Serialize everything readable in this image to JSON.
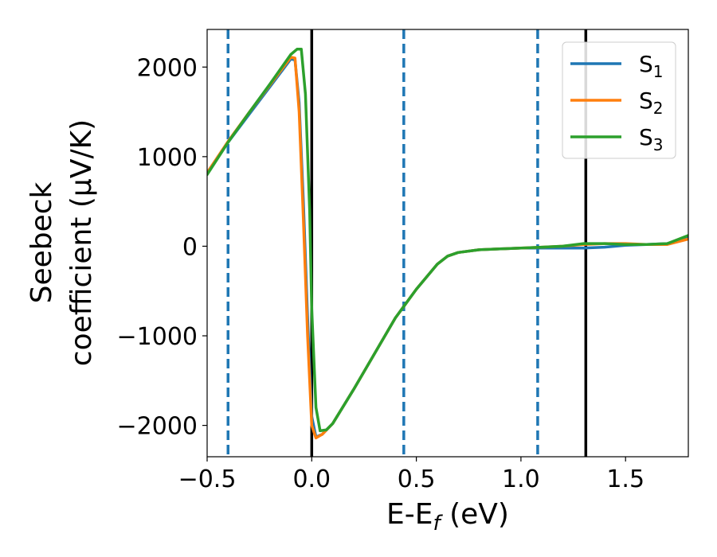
{
  "chart_data": {
    "type": "line",
    "title": "",
    "xlabel": {
      "main": "E-E",
      "sub": "f",
      "suffix": " (eV)"
    },
    "ylabel": {
      "line1": "Seebeck",
      "line2": "coefficient  (μV/K)"
    },
    "xlim": [
      -0.5,
      1.8
    ],
    "ylim": [
      -2350,
      2420
    ],
    "xticks": [
      -0.5,
      0.0,
      0.5,
      1.0,
      1.5
    ],
    "xtick_labels": [
      "−0.5",
      "0.0",
      "0.5",
      "1.0",
      "1.5"
    ],
    "yticks": [
      -2000,
      -1000,
      0,
      1000,
      2000
    ],
    "ytick_labels": [
      "−2000",
      "−1000",
      "0",
      "1000",
      "2000"
    ],
    "grid": false,
    "legend_position": "top-right",
    "vlines": [
      {
        "x": -0.4,
        "style": "dashed",
        "color": "#1f77b4"
      },
      {
        "x": 0.0,
        "style": "solid",
        "color": "#000000"
      },
      {
        "x": 0.44,
        "style": "dashed",
        "color": "#1f77b4"
      },
      {
        "x": 1.08,
        "style": "dashed",
        "color": "#1f77b4"
      },
      {
        "x": 1.31,
        "style": "solid",
        "color": "#000000"
      }
    ],
    "series": [
      {
        "name": "S",
        "sub": "1",
        "color": "#1f77b4",
        "x": [
          -0.5,
          -0.4,
          -0.3,
          -0.2,
          -0.1,
          -0.08,
          -0.06,
          -0.04,
          -0.02,
          0.0,
          0.02,
          0.05,
          0.1,
          0.2,
          0.3,
          0.4,
          0.5,
          0.6,
          0.65,
          0.7,
          0.8,
          0.9,
          1.0,
          1.1,
          1.2,
          1.3,
          1.4,
          1.5,
          1.6,
          1.7,
          1.8
        ],
        "y": [
          820,
          1160,
          1470,
          1780,
          2090,
          2080,
          1600,
          500,
          -800,
          -1900,
          -2130,
          -2100,
          -1980,
          -1600,
          -1200,
          -800,
          -480,
          -200,
          -110,
          -70,
          -40,
          -30,
          -20,
          -20,
          -20,
          -20,
          -10,
          10,
          20,
          30,
          100
        ]
      },
      {
        "name": "S",
        "sub": "2",
        "color": "#ff7f0e",
        "x": [
          -0.5,
          -0.4,
          -0.3,
          -0.2,
          -0.1,
          -0.08,
          -0.06,
          -0.04,
          -0.02,
          0.0,
          0.02,
          0.05,
          0.1,
          0.2,
          0.3,
          0.4,
          0.5,
          0.6,
          0.65,
          0.7,
          0.8,
          0.9,
          1.0,
          1.1,
          1.2,
          1.3,
          1.4,
          1.5,
          1.6,
          1.7,
          1.8
        ],
        "y": [
          820,
          1170,
          1490,
          1800,
          2110,
          2100,
          1500,
          300,
          -1000,
          -2000,
          -2140,
          -2100,
          -1980,
          -1600,
          -1200,
          -800,
          -480,
          -200,
          -110,
          -70,
          -40,
          -30,
          -20,
          -10,
          0,
          20,
          30,
          30,
          20,
          20,
          80
        ]
      },
      {
        "name": "S",
        "sub": "3",
        "color": "#2ca02c",
        "x": [
          -0.5,
          -0.4,
          -0.3,
          -0.2,
          -0.1,
          -0.07,
          -0.05,
          -0.03,
          -0.01,
          0.0,
          0.02,
          0.04,
          0.07,
          0.1,
          0.2,
          0.3,
          0.4,
          0.5,
          0.6,
          0.65,
          0.7,
          0.8,
          0.9,
          1.0,
          1.1,
          1.2,
          1.3,
          1.4,
          1.5,
          1.6,
          1.7,
          1.8
        ],
        "y": [
          800,
          1160,
          1490,
          1810,
          2140,
          2200,
          2200,
          1700,
          400,
          -700,
          -1800,
          -2060,
          -2050,
          -1980,
          -1600,
          -1200,
          -800,
          -480,
          -200,
          -110,
          -70,
          -40,
          -30,
          -20,
          -10,
          0,
          30,
          30,
          20,
          20,
          30,
          120
        ]
      }
    ]
  }
}
